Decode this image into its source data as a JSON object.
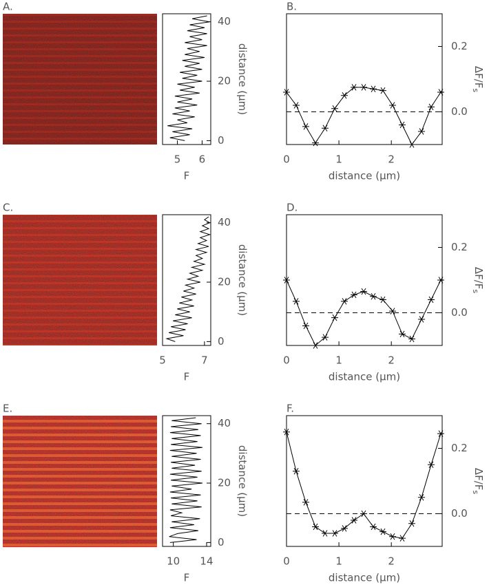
{
  "chart_data": [
    {
      "type": "line",
      "orientation": "horizontal",
      "label": "A.",
      "xlabel": "F",
      "ylabel": "distance (μm)",
      "color": "#000000",
      "xlim": [
        4.4,
        6.35
      ],
      "xticks": [
        5,
        6
      ],
      "ylim": [
        -1.3,
        42.7
      ],
      "yticks": [
        0,
        20,
        40
      ],
      "y": [
        0,
        1,
        2,
        3,
        4,
        5,
        6,
        7,
        8,
        9,
        10,
        11,
        12,
        13,
        14,
        15,
        16,
        17,
        18,
        19,
        20,
        21,
        22,
        23,
        24,
        25,
        26,
        27,
        28,
        29,
        30,
        31,
        32,
        33,
        34,
        35,
        36,
        37,
        38,
        39,
        40,
        41,
        42
      ],
      "values": [
        5.3,
        4.7,
        5.5,
        4.8,
        5.6,
        4.6,
        5.4,
        5.0,
        5.7,
        4.8,
        5.5,
        4.9,
        5.8,
        5.0,
        5.6,
        4.9,
        5.9,
        5.1,
        5.7,
        5.0,
        6.0,
        5.2,
        5.8,
        5.1,
        6.0,
        5.3,
        5.9,
        5.2,
        6.1,
        5.3,
        5.9,
        5.4,
        6.2,
        5.3,
        6.0,
        5.5,
        6.2,
        5.4,
        6.1,
        5.5,
        6.3,
        5.6,
        6.2
      ]
    },
    {
      "type": "line",
      "marker": "star",
      "label": "B.",
      "xlabel": "distance (μm)",
      "ylabel": "ΔF/F",
      "ylabel_sub": "s",
      "color": "#000000",
      "xlim": [
        0,
        2.97
      ],
      "xticks": [
        0,
        1,
        2
      ],
      "ylim": [
        -0.1,
        0.3
      ],
      "yticks": [
        {
          "value": 0,
          "label": "0.0"
        },
        {
          "value": 0.2,
          "label": "0.2"
        }
      ],
      "hline": 0,
      "x": [
        0,
        0.184,
        0.368,
        0.552,
        0.736,
        0.92,
        1.104,
        1.288,
        1.472,
        1.656,
        1.84,
        2.024,
        2.208,
        2.392,
        2.576,
        2.76,
        2.944
      ],
      "values": [
        0.06,
        0.02,
        -0.045,
        -0.095,
        -0.05,
        0.01,
        0.05,
        0.075,
        0.075,
        0.07,
        0.065,
        0.02,
        -0.04,
        -0.1,
        -0.06,
        0.015,
        0.06
      ]
    },
    {
      "type": "line",
      "orientation": "horizontal",
      "label": "C.",
      "xlabel": "F",
      "ylabel": "distance (μm)",
      "color": "#000000",
      "xlim": [
        5,
        7.3
      ],
      "xticks": [
        5,
        7
      ],
      "ylim": [
        -1.3,
        42.7
      ],
      "yticks": [
        0,
        20,
        40
      ],
      "y": [
        0,
        1,
        2,
        3,
        4,
        5,
        6,
        7,
        8,
        9,
        10,
        11,
        12,
        13,
        14,
        15,
        16,
        17,
        18,
        19,
        20,
        21,
        22,
        23,
        24,
        25,
        26,
        27,
        28,
        29,
        30,
        31,
        32,
        33,
        34,
        35,
        36,
        37,
        38,
        39,
        40,
        41,
        42
      ],
      "values": [
        5.6,
        5.2,
        6.0,
        5.3,
        6.1,
        5.4,
        6.2,
        5.5,
        6.4,
        5.6,
        6.3,
        5.7,
        6.5,
        5.8,
        6.4,
        5.9,
        6.6,
        6.0,
        6.5,
        6.1,
        6.8,
        6.2,
        6.7,
        6.3,
        6.9,
        6.4,
        7.0,
        6.5,
        6.9,
        6.6,
        7.1,
        6.6,
        7.2,
        6.7,
        7.1,
        6.8,
        7.25,
        6.8,
        7.2,
        6.9,
        7.25,
        7.0,
        7.2
      ]
    },
    {
      "type": "line",
      "marker": "star",
      "label": "D.",
      "xlabel": "distance (μm)",
      "ylabel": "ΔF/F",
      "ylabel_sub": "s",
      "color": "#000000",
      "xlim": [
        0,
        2.97
      ],
      "xticks": [
        0,
        1,
        2
      ],
      "ylim": [
        -0.1,
        0.3
      ],
      "yticks": [
        {
          "value": 0,
          "label": "0.0"
        },
        {
          "value": 0.2,
          "label": "0.2"
        }
      ],
      "hline": 0,
      "x": [
        0,
        0.184,
        0.368,
        0.552,
        0.736,
        0.92,
        1.104,
        1.288,
        1.472,
        1.656,
        1.84,
        2.024,
        2.208,
        2.392,
        2.576,
        2.76,
        2.944
      ],
      "values": [
        0.1,
        0.035,
        -0.04,
        -0.1,
        -0.075,
        -0.015,
        0.035,
        0.055,
        0.065,
        0.05,
        0.04,
        0.005,
        -0.065,
        -0.08,
        -0.02,
        0.04,
        0.1
      ]
    },
    {
      "type": "line",
      "orientation": "horizontal",
      "label": "E.",
      "xlabel": "F",
      "ylabel": "distance (μm)",
      "color": "#000000",
      "xlim": [
        8.7,
        14.5
      ],
      "xticks": [
        10,
        14
      ],
      "ylim": [
        -1.3,
        42.7
      ],
      "yticks": [
        0,
        20,
        40
      ],
      "y": [
        0,
        1,
        2,
        3,
        4,
        5,
        6,
        7,
        8,
        9,
        10,
        11,
        12,
        13,
        14,
        15,
        16,
        17,
        18,
        19,
        20,
        21,
        22,
        23,
        24,
        25,
        26,
        27,
        28,
        29,
        30,
        31,
        32,
        33,
        34,
        35,
        36,
        37,
        38,
        39,
        40,
        41,
        42
      ],
      "values": [
        9.6,
        12.8,
        9.5,
        10.5,
        13.0,
        9.6,
        12.5,
        9.8,
        13.2,
        9.7,
        11.0,
        9.6,
        13.4,
        9.8,
        12.9,
        9.7,
        13.3,
        9.6,
        12.2,
        9.8,
        13.5,
        9.7,
        12.9,
        9.6,
        13.4,
        9.8,
        12.6,
        9.7,
        13.3,
        9.8,
        12.8,
        9.6,
        13.5,
        9.7,
        12.9,
        9.8,
        13.3,
        9.6,
        13.0,
        9.7,
        13.4,
        9.8,
        12.7
      ]
    },
    {
      "type": "line",
      "marker": "star",
      "label": "F.",
      "xlabel": "distance (μm)",
      "ylabel": "ΔF/F",
      "ylabel_sub": "s",
      "color": "#000000",
      "xlim": [
        0,
        2.97
      ],
      "xticks": [
        0,
        1,
        2
      ],
      "ylim": [
        -0.1,
        0.3
      ],
      "yticks": [
        {
          "value": 0,
          "label": "0.0"
        },
        {
          "value": 0.2,
          "label": "0.2"
        }
      ],
      "hline": 0,
      "x": [
        0,
        0.184,
        0.368,
        0.552,
        0.736,
        0.92,
        1.104,
        1.288,
        1.472,
        1.656,
        1.84,
        2.024,
        2.208,
        2.392,
        2.576,
        2.76,
        2.944
      ],
      "values": [
        0.25,
        0.13,
        0.035,
        -0.04,
        -0.06,
        -0.06,
        -0.045,
        -0.02,
        0.0,
        -0.04,
        -0.055,
        -0.07,
        -0.075,
        -0.03,
        0.05,
        0.15,
        0.245
      ]
    }
  ]
}
